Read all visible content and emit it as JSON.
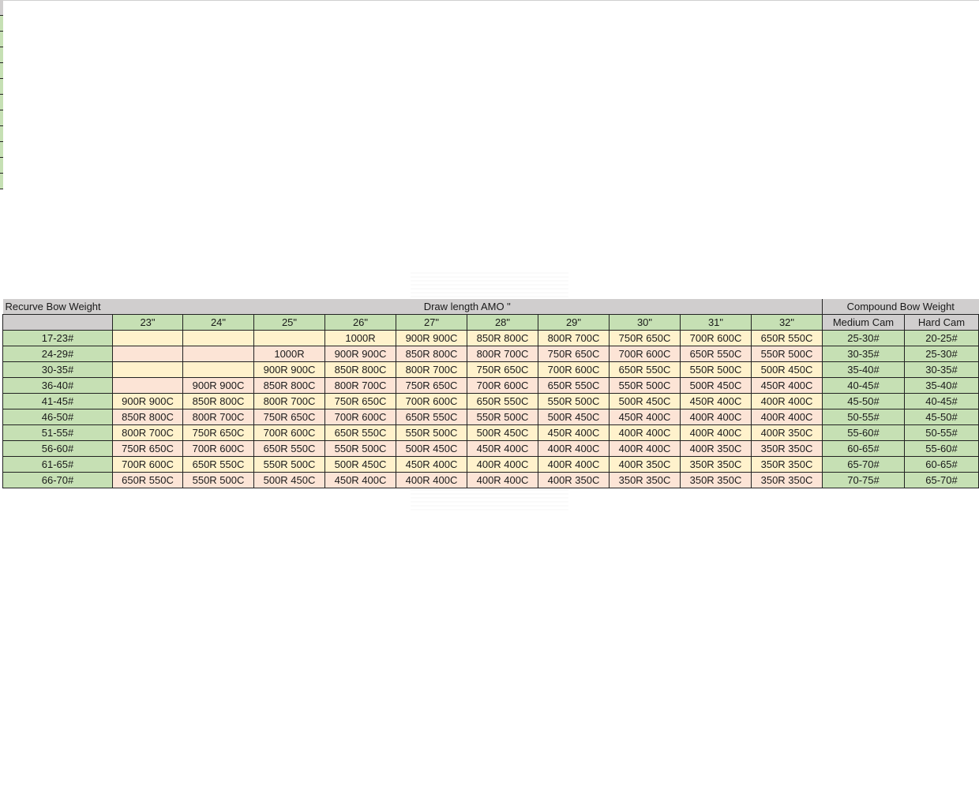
{
  "table": {
    "recurve_label": "Recurve Bow Weight",
    "draw_label": "Draw length AMO \"",
    "compound_label": "Compound Bow Weight",
    "draw_lengths": [
      "23\"",
      "24\"",
      "25\"",
      "26\"",
      "27\"",
      "28\"",
      "29\"",
      "30\"",
      "31\"",
      "32\""
    ],
    "cam_headers": [
      "Medium Cam",
      "Hard Cam"
    ],
    "rows": [
      {
        "weight": "17-23#",
        "values": [
          "",
          "",
          "",
          "1000R",
          "900R 900C",
          "850R 800C",
          "800R 700C",
          "750R 650C",
          "700R 600C",
          "650R 550C"
        ],
        "medium": "25-30#",
        "hard": "20-25#"
      },
      {
        "weight": "24-29#",
        "values": [
          "",
          "",
          "1000R",
          "900R 900C",
          "850R 800C",
          "800R 700C",
          "750R 650C",
          "700R 600C",
          "650R 550C",
          "550R 500C"
        ],
        "medium": "30-35#",
        "hard": "25-30#"
      },
      {
        "weight": "30-35#",
        "values": [
          "",
          "",
          "900R 900C",
          "850R 800C",
          "800R 700C",
          "750R 650C",
          "700R 600C",
          "650R 550C",
          "550R 500C",
          "500R 450C"
        ],
        "medium": "35-40#",
        "hard": "30-35#"
      },
      {
        "weight": "36-40#",
        "values": [
          "",
          "900R 900C",
          "850R 800C",
          "800R 700C",
          "750R 650C",
          "700R 600C",
          "650R 550C",
          "550R 500C",
          "500R 450C",
          "450R 400C"
        ],
        "medium": "40-45#",
        "hard": "35-40#"
      },
      {
        "weight": "41-45#",
        "values": [
          "900R 900C",
          "850R 800C",
          "800R 700C",
          "750R 650C",
          "700R 600C",
          "650R 550C",
          "550R 500C",
          "500R 450C",
          "450R 400C",
          "400R 400C"
        ],
        "medium": "45-50#",
        "hard": "40-45#"
      },
      {
        "weight": "46-50#",
        "values": [
          "850R 800C",
          "800R 700C",
          "750R 650C",
          "700R 600C",
          "650R 550C",
          "550R 500C",
          "500R 450C",
          "450R 400C",
          "400R 400C",
          "400R 400C"
        ],
        "medium": "50-55#",
        "hard": "45-50#"
      },
      {
        "weight": "51-55#",
        "values": [
          "800R 700C",
          "750R 650C",
          "700R 600C",
          "650R 550C",
          "550R 500C",
          "500R 450C",
          "450R 400C",
          "400R 400C",
          "400R 400C",
          "400R 350C"
        ],
        "medium": "55-60#",
        "hard": "50-55#"
      },
      {
        "weight": "56-60#",
        "values": [
          "750R 650C",
          "700R 600C",
          "650R 550C",
          "550R 500C",
          "500R 450C",
          "450R 400C",
          "400R 400C",
          "400R 400C",
          "400R 350C",
          "350R 350C"
        ],
        "medium": "60-65#",
        "hard": "55-60#"
      },
      {
        "weight": "61-65#",
        "values": [
          "700R 600C",
          "650R 550C",
          "550R 500C",
          "500R 450C",
          "450R 400C",
          "400R 400C",
          "400R 400C",
          "400R 350C",
          "350R 350C",
          "350R 350C"
        ],
        "medium": "65-70#",
        "hard": "60-65#"
      },
      {
        "weight": "66-70#",
        "values": [
          "650R 550C",
          "550R 500C",
          "500R 450C",
          "450R 400C",
          "400R 400C",
          "400R 400C",
          "400R 350C",
          "350R 350C",
          "350R 350C",
          "350R 350C"
        ],
        "medium": "70-75#",
        "hard": "65-70#"
      }
    ]
  },
  "colors": {
    "header_gray": "#d0cece",
    "weight_green": "#c6e0b4",
    "row_yellow": "#fff2cc",
    "row_pink": "#fce4d6"
  }
}
